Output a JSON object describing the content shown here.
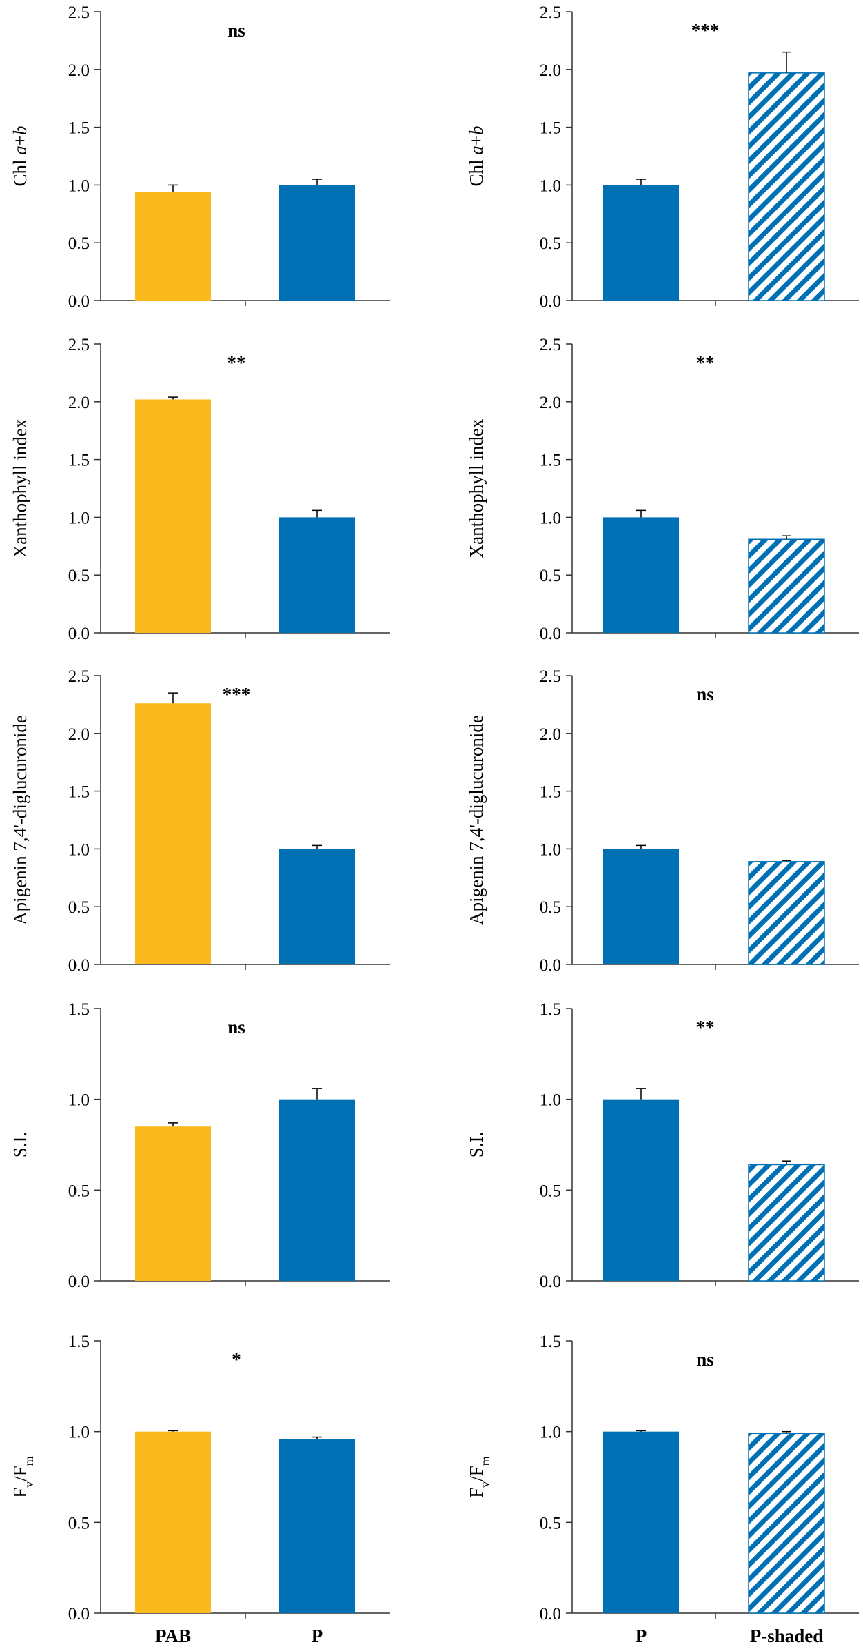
{
  "colors": {
    "yellow": "#FBB91E",
    "blue": "#0070B5",
    "axis": "#333333"
  },
  "chart_data": [
    {
      "type": "bar",
      "id": "chl-left",
      "column": "left",
      "ylabel": [
        {
          "t": "Chl "
        },
        {
          "t": "a",
          "i": true
        },
        {
          "t": "+"
        },
        {
          "t": "b",
          "i": true
        }
      ],
      "ylim": [
        0,
        2.5
      ],
      "yticks": [
        "0.0",
        "0.5",
        "1.0",
        "1.5",
        "2.0",
        "2.5"
      ],
      "categories": [
        "PAB",
        "P"
      ],
      "styles": [
        "yellow",
        "blue"
      ],
      "values": [
        0.94,
        1.0
      ],
      "errors": [
        0.06,
        0.05
      ],
      "significance": "ns"
    },
    {
      "type": "bar",
      "id": "chl-right",
      "column": "right",
      "ylabel": [
        {
          "t": "Chl "
        },
        {
          "t": "a",
          "i": true
        },
        {
          "t": "+"
        },
        {
          "t": "b",
          "i": true
        }
      ],
      "ylim": [
        0,
        2.5
      ],
      "yticks": [
        "0.0",
        "0.5",
        "1.0",
        "1.5",
        "2.0",
        "2.5"
      ],
      "categories": [
        "P",
        "P-shaded"
      ],
      "styles": [
        "blue",
        "hatched"
      ],
      "values": [
        1.0,
        1.97
      ],
      "errors": [
        0.05,
        0.18
      ],
      "significance": "***"
    },
    {
      "type": "bar",
      "id": "xan-left",
      "column": "left",
      "ylabel": [
        {
          "t": "Xanthophyll index"
        }
      ],
      "ylim": [
        0,
        2.5
      ],
      "yticks": [
        "0.0",
        "0.5",
        "1.0",
        "1.5",
        "2.0",
        "2.5"
      ],
      "categories": [
        "PAB",
        "P"
      ],
      "styles": [
        "yellow",
        "blue"
      ],
      "values": [
        2.02,
        1.0
      ],
      "errors": [
        0.02,
        0.06
      ],
      "significance": "**"
    },
    {
      "type": "bar",
      "id": "xan-right",
      "column": "right",
      "ylabel": [
        {
          "t": "Xanthophyll index"
        }
      ],
      "ylim": [
        0,
        2.5
      ],
      "yticks": [
        "0.0",
        "0.5",
        "1.0",
        "1.5",
        "2.0",
        "2.5"
      ],
      "categories": [
        "P",
        "P-shaded"
      ],
      "styles": [
        "blue",
        "hatched"
      ],
      "values": [
        1.0,
        0.81
      ],
      "errors": [
        0.06,
        0.03
      ],
      "significance": "**"
    },
    {
      "type": "bar",
      "id": "api-left",
      "column": "left",
      "ylabel": [
        {
          "t": "Apigenin 7,4'-diglucuronide"
        }
      ],
      "ylim": [
        0,
        2.5
      ],
      "yticks": [
        "0.0",
        "0.5",
        "1.0",
        "1.5",
        "2.0",
        "2.5"
      ],
      "categories": [
        "PAB",
        "P"
      ],
      "styles": [
        "yellow",
        "blue"
      ],
      "values": [
        2.26,
        1.0
      ],
      "errors": [
        0.09,
        0.03
      ],
      "significance": "***"
    },
    {
      "type": "bar",
      "id": "api-right",
      "column": "right",
      "ylabel": [
        {
          "t": "Apigenin 7,4'-diglucuronide"
        }
      ],
      "ylim": [
        0,
        2.5
      ],
      "yticks": [
        "0.0",
        "0.5",
        "1.0",
        "1.5",
        "2.0",
        "2.5"
      ],
      "categories": [
        "P",
        "P-shaded"
      ],
      "styles": [
        "blue",
        "hatched"
      ],
      "values": [
        1.0,
        0.89
      ],
      "errors": [
        0.03,
        0.01
      ],
      "significance": "ns"
    },
    {
      "type": "bar",
      "id": "si-left",
      "column": "left",
      "ylabel": [
        {
          "t": "S.I."
        }
      ],
      "ylim": [
        0,
        1.5
      ],
      "yticks": [
        "0.0",
        "0.5",
        "1.0",
        "1.5"
      ],
      "categories": [
        "PAB",
        "P"
      ],
      "styles": [
        "yellow",
        "blue"
      ],
      "values": [
        0.85,
        1.0
      ],
      "errors": [
        0.02,
        0.06
      ],
      "significance": "ns"
    },
    {
      "type": "bar",
      "id": "si-right",
      "column": "right",
      "ylabel": [
        {
          "t": "S.I."
        }
      ],
      "ylim": [
        0,
        1.5
      ],
      "yticks": [
        "0.0",
        "0.5",
        "1.0",
        "1.5"
      ],
      "categories": [
        "P",
        "P-shaded"
      ],
      "styles": [
        "blue",
        "hatched"
      ],
      "values": [
        1.0,
        0.64
      ],
      "errors": [
        0.06,
        0.02
      ],
      "significance": "**"
    },
    {
      "type": "bar",
      "id": "fvfm-left",
      "column": "left",
      "ylabel": [
        {
          "t": "F"
        },
        {
          "t": "v",
          "sub": true
        },
        {
          "t": "/F"
        },
        {
          "t": "m",
          "sub": true
        }
      ],
      "ylim": [
        0,
        1.5
      ],
      "yticks": [
        "0.0",
        "0.5",
        "1.0",
        "1.5"
      ],
      "categories": [
        "PAB",
        "P"
      ],
      "styles": [
        "yellow",
        "blue"
      ],
      "values": [
        1.0,
        0.96
      ],
      "errors": [
        0.005,
        0.01
      ],
      "significance": "*",
      "xlabels_shown": [
        "PAB",
        "P"
      ]
    },
    {
      "type": "bar",
      "id": "fvfm-right",
      "column": "right",
      "ylabel": [
        {
          "t": "F"
        },
        {
          "t": "v",
          "sub": true
        },
        {
          "t": "/F"
        },
        {
          "t": "m",
          "sub": true
        }
      ],
      "ylim": [
        0,
        1.5
      ],
      "yticks": [
        "0.0",
        "0.5",
        "1.0",
        "1.5"
      ],
      "categories": [
        "P",
        "P-shaded"
      ],
      "styles": [
        "blue",
        "hatched"
      ],
      "values": [
        1.0,
        0.99
      ],
      "errors": [
        0.005,
        0.01
      ],
      "significance": "ns",
      "xlabels_shown": [
        "P",
        "P-shaded"
      ]
    }
  ]
}
